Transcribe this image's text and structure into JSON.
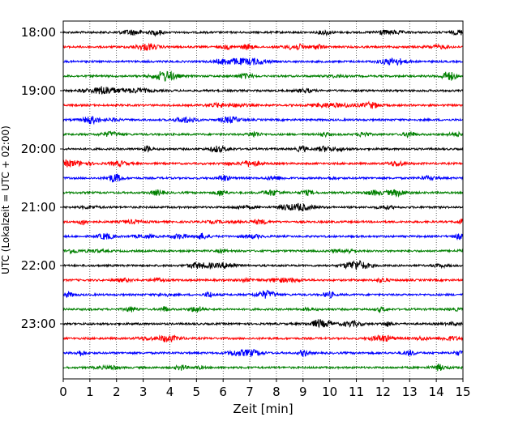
{
  "chart_data": {
    "type": "line",
    "title": "",
    "xlabel": "Zeit  [min]",
    "ylabel": "UTC (Lokalzeit = UTC + 02:00)",
    "xlim": [
      0,
      15
    ],
    "x_ticks": [
      "0",
      "1",
      "2",
      "3",
      "4",
      "5",
      "6",
      "7",
      "8",
      "9",
      "10",
      "11",
      "12",
      "13",
      "14",
      "15"
    ],
    "y_ticks": [
      "18:00",
      "19:00",
      "20:00",
      "21:00",
      "22:00",
      "23:00"
    ],
    "grid": "vertical dotted at each minute",
    "trace_interval_min": 15,
    "trace_start": "18:00",
    "trace_count": 24,
    "color_cycle": [
      "#000000",
      "#ff0000",
      "#0000ff",
      "#008000"
    ]
  }
}
